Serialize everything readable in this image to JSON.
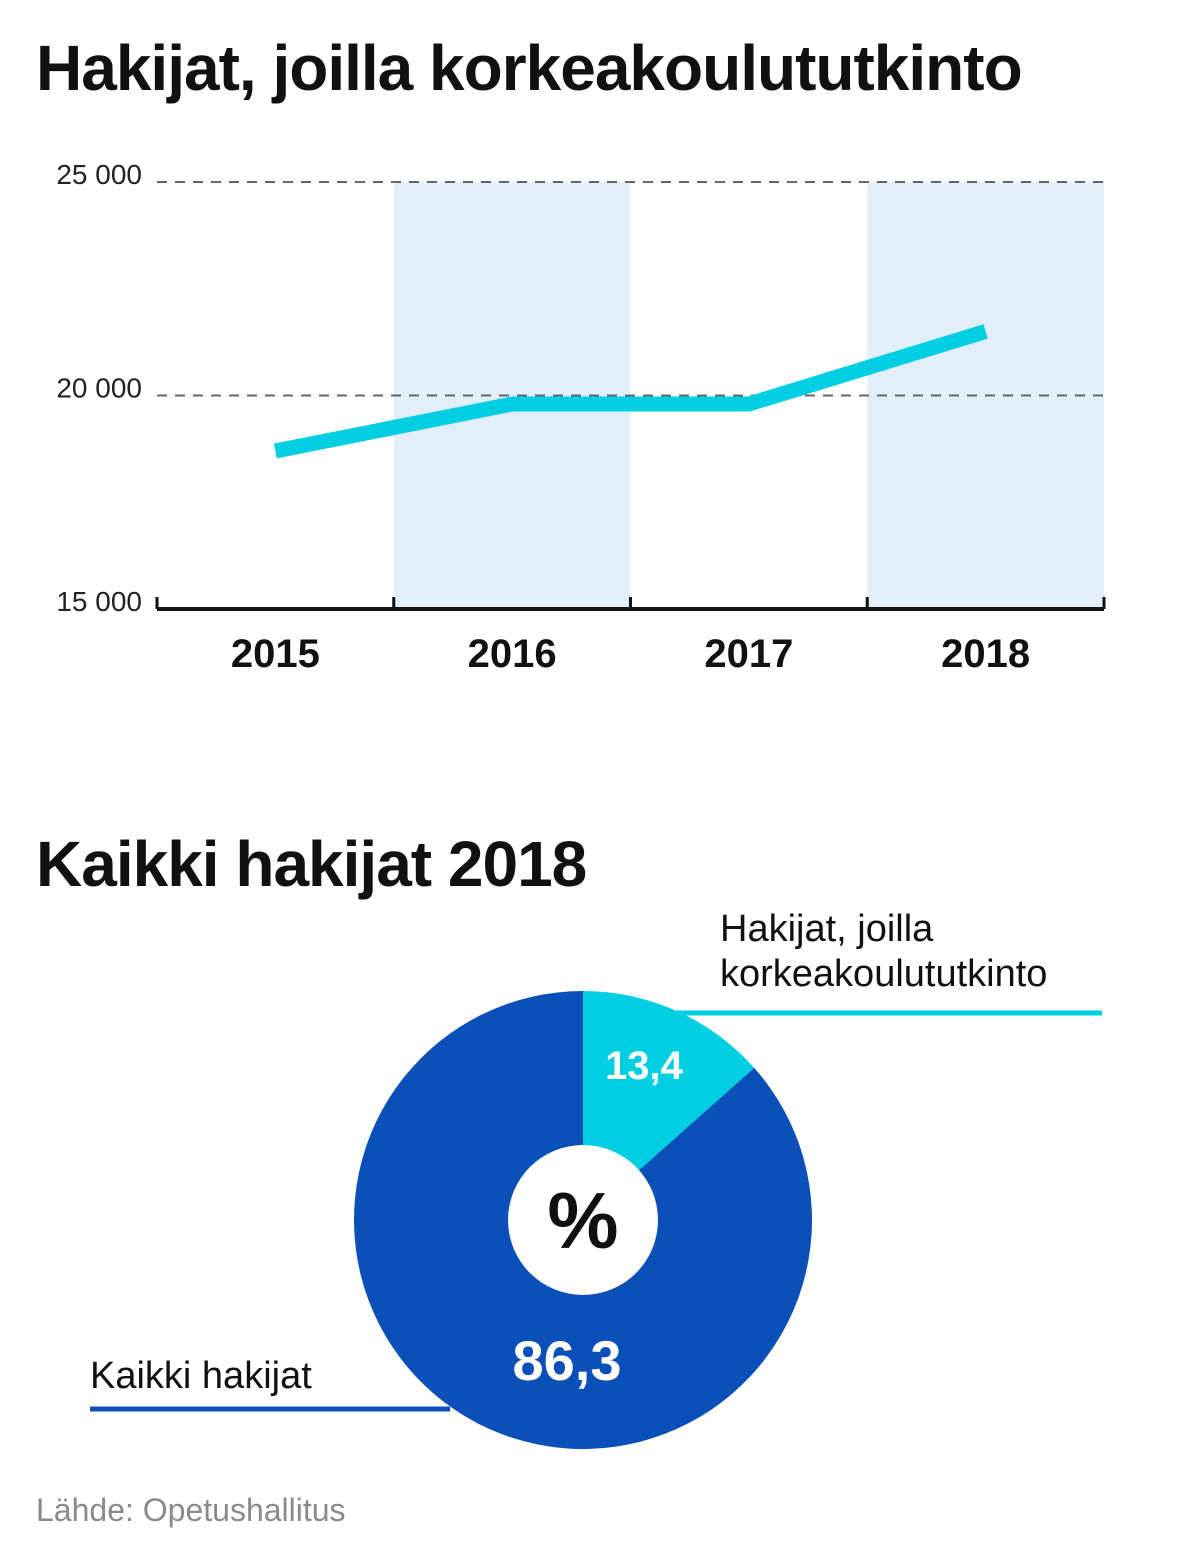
{
  "chart_data": [
    {
      "type": "line",
      "title": "Hakijat, joilla korkeakoulututkinto",
      "categories": [
        "2015",
        "2016",
        "2017",
        "2018"
      ],
      "values": [
        18700,
        19800,
        19800,
        21500
      ],
      "ylim": [
        15000,
        25000
      ],
      "yticks": [
        15000,
        20000,
        25000
      ],
      "ytick_labels": [
        "15 000",
        "20 000",
        "25 000"
      ],
      "grid": "dashed horizontal",
      "colors": {
        "line": "#00cfe3",
        "band": "#e3eff8",
        "axis": "#111111",
        "grid": "#666666"
      }
    },
    {
      "type": "pie",
      "title": "Kaikki hakijat 2018",
      "center_label": "%",
      "slices": [
        {
          "label_lines": [
            "Hakijat, joilla",
            "korkeakoulututkinto"
          ],
          "value": 13.4,
          "value_label": "13,4",
          "color": "#00cfe3"
        },
        {
          "label_lines": [
            "Kaikki hakijat"
          ],
          "value": 86.3,
          "value_label": "86,3",
          "color": "#0b50b9"
        }
      ]
    }
  ],
  "source": "Lähde: Opetushallitus"
}
